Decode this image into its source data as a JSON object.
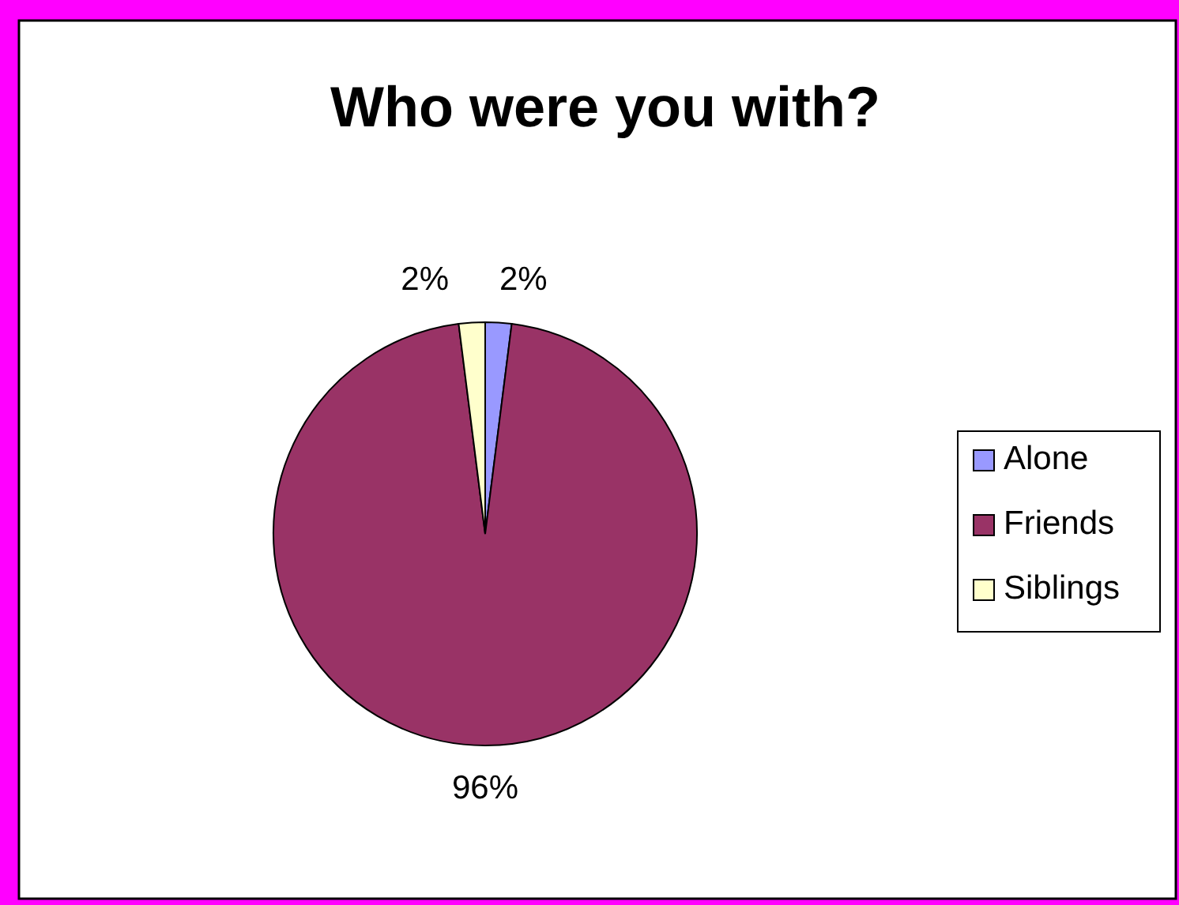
{
  "chart_data": {
    "type": "pie",
    "title": "Who were you with?",
    "categories": [
      "Alone",
      "Friends",
      "Siblings"
    ],
    "values": [
      2,
      96,
      2
    ],
    "colors": [
      "#9999ff",
      "#993366",
      "#ffffcc"
    ],
    "value_labels": [
      "2%",
      "96%",
      "2%"
    ],
    "legend": "right"
  }
}
